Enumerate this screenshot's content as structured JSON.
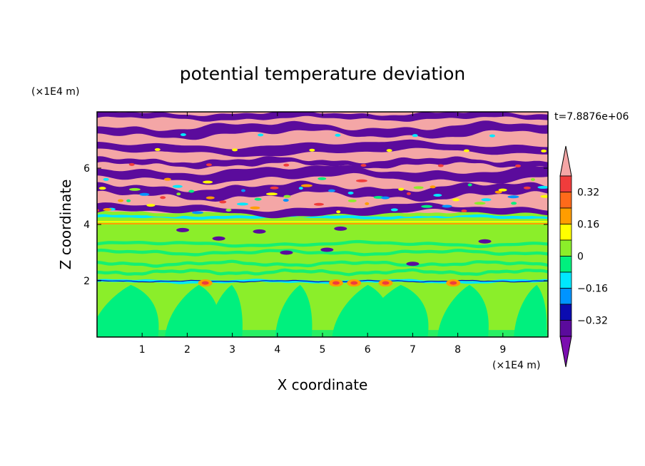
{
  "chart_data": {
    "type": "heatmap",
    "title": "potential temperature deviation",
    "xlabel": "X coordinate",
    "ylabel": "Z coordinate",
    "x_unit": "(×1E4 m)",
    "y_unit": "(×1E4 m)",
    "time_label": "t=7.8876e+06",
    "xlim": [
      0,
      10
    ],
    "ylim": [
      0,
      8
    ],
    "x_ticks": [
      "1",
      "2",
      "3",
      "4",
      "5",
      "6",
      "7",
      "8",
      "9"
    ],
    "x_tick_values": [
      1,
      2,
      3,
      4,
      5,
      6,
      7,
      8,
      9
    ],
    "y_ticks": [
      "2",
      "4",
      "6"
    ],
    "y_tick_values": [
      2,
      4,
      6
    ],
    "colorbar": {
      "levels": [
        -0.4,
        -0.32,
        -0.24,
        -0.16,
        -0.08,
        0,
        0.08,
        0.16,
        0.24,
        0.32,
        0.4
      ],
      "labels": [
        "0.32",
        "0.16",
        "0",
        "−0.16",
        "−0.32"
      ],
      "label_values": [
        0.32,
        0.16,
        0,
        -0.16,
        -0.32
      ],
      "colors_high_to_low": [
        "#f4a6a6",
        "#f03c3c",
        "#ff6a1a",
        "#ff9d00",
        "#ffff00",
        "#8bee2a",
        "#00f07e",
        "#00e8ff",
        "#0094ff",
        "#0b0bb0",
        "#5b0b9c",
        "#7b0fb0"
      ]
    },
    "bands": [
      {
        "z_range": [
          7.2,
          8.0
        ],
        "pattern": "alternating pink/purple layers"
      },
      {
        "z_range": [
          4.4,
          7.2
        ],
        "pattern": "pink and purple layers with turbulent red/yellow/cyan mixing near 5"
      },
      {
        "z_range": [
          4.0,
          4.4
        ],
        "pattern": "thin orange/yellow/cyan strata"
      },
      {
        "z_range": [
          2.0,
          4.0
        ],
        "pattern": "mostly light green with small purple patches"
      },
      {
        "z_range": [
          0.0,
          2.0
        ],
        "pattern": "green-teal convective plumes"
      }
    ]
  },
  "colors": {
    "pink": "#f4a6a6",
    "red": "#f03c3c",
    "orange": "#ff9d00",
    "yellow": "#ffff00",
    "lightgreen": "#8bee2a",
    "green": "#00f07e",
    "cyan": "#00e8ff",
    "blue": "#0094ff",
    "navy": "#0b0bb0",
    "purple": "#5b0b9c"
  }
}
